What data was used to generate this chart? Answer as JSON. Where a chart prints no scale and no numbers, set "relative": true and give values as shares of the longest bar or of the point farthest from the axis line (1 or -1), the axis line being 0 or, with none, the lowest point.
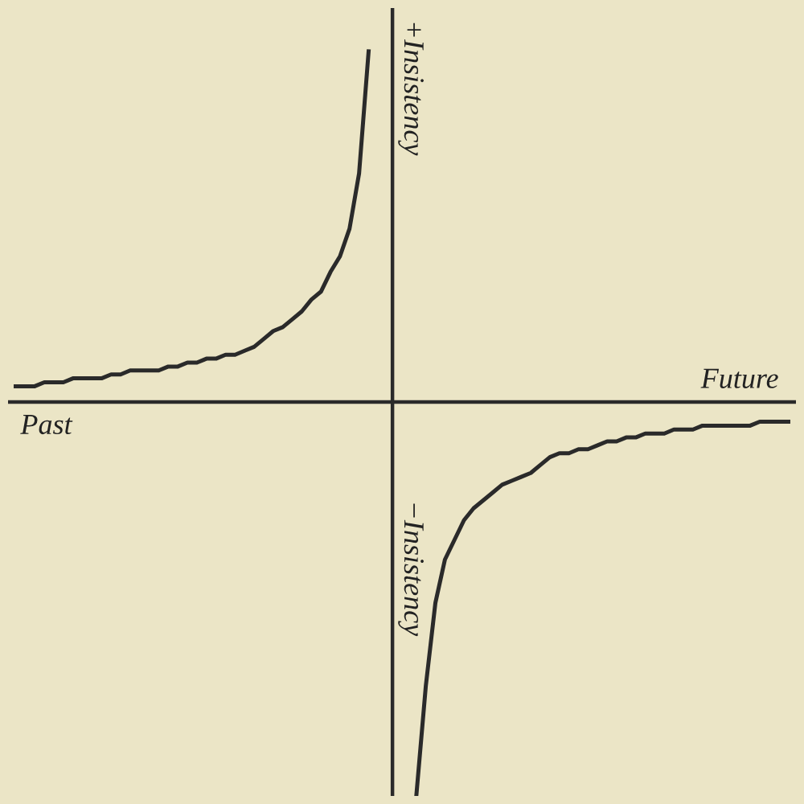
{
  "chart_data": {
    "type": "line",
    "relative": true,
    "marker": "none",
    "line_style": "solid",
    "categories": [
      null,
      null,
      null,
      null,
      null,
      null,
      null,
      null,
      null,
      null,
      null,
      null,
      null,
      null,
      null,
      null,
      null,
      null,
      null,
      null,
      null,
      null,
      null,
      null,
      null,
      null,
      null,
      null,
      null,
      null,
      null,
      null,
      null,
      null,
      null,
      null,
      null,
      null,
      null,
      null,
      null,
      null,
      null,
      null,
      null,
      null,
      null,
      null,
      null,
      null,
      null,
      null,
      null,
      null,
      null,
      null,
      null,
      null,
      null,
      null,
      null,
      null,
      null,
      null,
      null,
      null,
      null,
      null,
      null,
      null,
      null,
      null,
      null,
      null,
      null,
      null,
      null,
      null,
      null,
      null,
      null,
      null
    ],
    "series": [
      {
        "color": "#2a2a2a",
        "values": [
          0.04,
          0.04,
          0.04,
          0.05,
          0.05,
          0.05,
          0.06,
          0.06,
          0.06,
          0.06,
          0.07,
          0.07,
          0.08,
          0.08,
          0.08,
          0.08,
          0.09,
          0.09,
          0.1,
          0.1,
          0.11,
          0.11,
          0.12,
          0.12,
          0.13,
          0.14,
          0.16,
          0.18,
          0.19,
          0.21,
          0.23,
          0.26,
          0.28,
          0.33,
          0.37,
          0.44,
          0.58,
          0.89,
          null,
          null,
          null,
          null,
          null,
          null,
          null,
          null,
          null,
          null,
          null,
          null,
          null,
          null,
          null,
          null,
          null,
          null,
          null,
          null,
          null,
          null,
          null,
          null,
          null,
          null,
          null,
          null,
          null,
          null,
          null,
          null,
          null,
          null,
          null,
          null,
          null,
          null,
          null,
          null,
          null,
          null,
          null,
          null
        ]
      },
      {
        "color": "#2a2a2a",
        "values": [
          null,
          null,
          null,
          null,
          null,
          null,
          null,
          null,
          null,
          null,
          null,
          null,
          null,
          null,
          null,
          null,
          null,
          null,
          null,
          null,
          null,
          null,
          null,
          null,
          null,
          null,
          null,
          null,
          null,
          null,
          null,
          null,
          null,
          null,
          null,
          null,
          null,
          null,
          null,
          null,
          null,
          null,
          -1.0,
          -0.72,
          -0.51,
          -0.4,
          -0.35,
          -0.3,
          -0.27,
          -0.25,
          -0.23,
          -0.21,
          -0.2,
          -0.19,
          -0.18,
          -0.16,
          -0.14,
          -0.13,
          -0.13,
          -0.12,
          -0.12,
          -0.11,
          -0.1,
          -0.1,
          -0.09,
          -0.09,
          -0.08,
          -0.08,
          -0.08,
          -0.07,
          -0.07,
          -0.07,
          -0.06,
          -0.06,
          -0.06,
          -0.06,
          -0.06,
          -0.06,
          -0.05,
          -0.05,
          -0.05,
          -0.05
        ]
      }
    ],
    "annotations": [
      "Past",
      "Future",
      "+Insistency",
      "−Insistency"
    ]
  }
}
